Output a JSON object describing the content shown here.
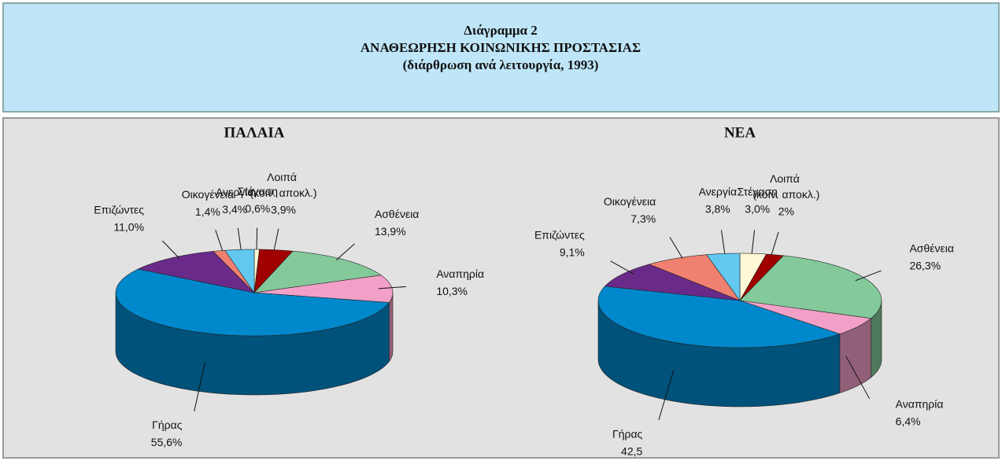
{
  "header": {
    "lines": [
      "Διάγραμμα 2",
      "ΑΝΑΘΕΩΡΗΣΗ ΚΟΙΝΩΝΙΚΗΣ ΠΡΟΣΤΑΣΙΑΣ",
      "(διάρθρωση ανά λειτουργία, 1993)"
    ]
  },
  "chart_data": [
    {
      "type": "pie",
      "title": "ΠΑΛΑΙΑ",
      "categories": [
        "Στέγαση",
        "Λοιπά (κοιν. αποκλ.)",
        "Ασθένεια",
        "Αναπηρία",
        "Γήρας",
        "Επιζώντες",
        "Οικογένεια",
        "Ανεργία"
      ],
      "values": [
        0.6,
        3.9,
        13.9,
        10.3,
        55.6,
        11.0,
        1.4,
        3.4
      ],
      "value_labels": [
        "0,6%",
        "3,9%",
        "13,9%",
        "10,3%",
        "55,6%",
        "11,0%",
        "1,4%",
        "3,4%"
      ],
      "colors": [
        "#fff8d4",
        "#a00000",
        "#84c99a",
        "#f2a0c8",
        "#0088cc",
        "#6a2a8a",
        "#f08070",
        "#62c8f0"
      ]
    },
    {
      "type": "pie",
      "title": "ΝΕΑ",
      "categories": [
        "Στέγαση",
        "Λοιπά (κοιν. αποκλ.)",
        "Ασθένεια",
        "Αναπηρία",
        "Γήρας",
        "Επιζώντες",
        "Οικογένεια",
        "Ανεργία"
      ],
      "values": [
        3.0,
        2,
        26.3,
        6.4,
        42.5,
        9.1,
        7.3,
        3.8
      ],
      "value_labels": [
        "3,0%",
        "2%",
        "26,3%",
        "6,4%",
        "42,5",
        "9,1%",
        "7,3%",
        "3,8%"
      ],
      "colors": [
        "#fff8d4",
        "#a00000",
        "#84c99a",
        "#f2a0c8",
        "#0088cc",
        "#6a2a8a",
        "#f08070",
        "#62c8f0"
      ]
    }
  ]
}
